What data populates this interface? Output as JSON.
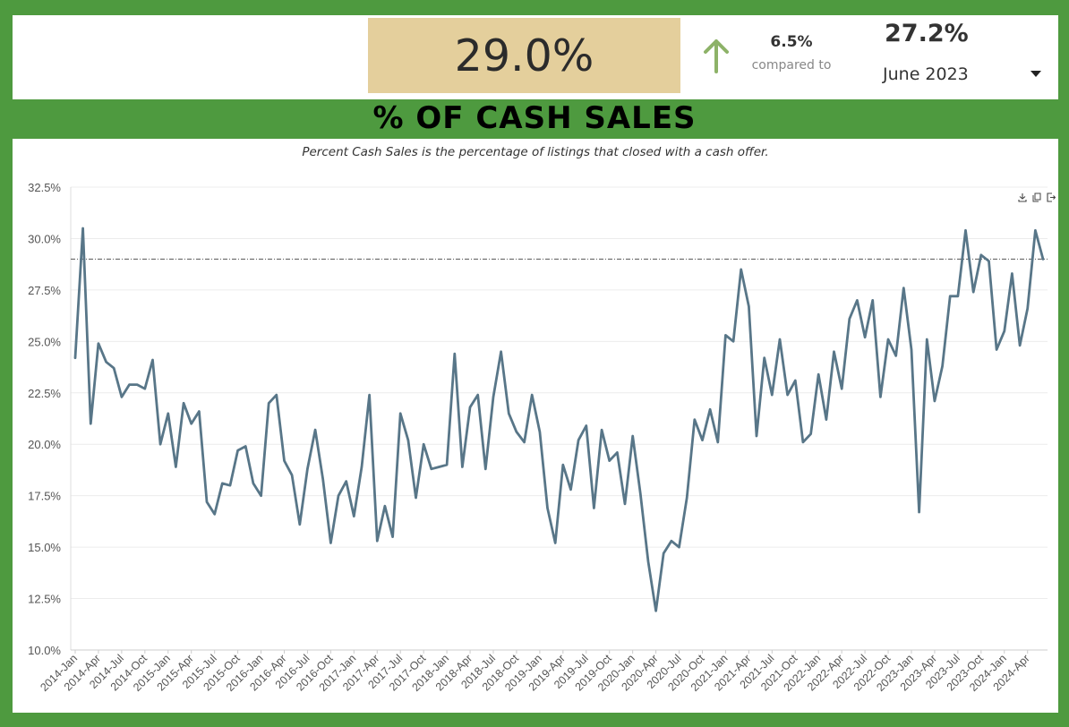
{
  "kpi": {
    "current_value": "29.0%",
    "change_value": "6.5%",
    "compared_label": "compared to",
    "previous_value": "27.2%",
    "period": "June 2023",
    "trend": "up",
    "colors": {
      "kpi_bg": "#e4cf9c",
      "arrow": "#8db268",
      "frame": "#4e9a3f"
    }
  },
  "title": "% OF CASH SALES",
  "subtitle": "Percent Cash Sales is the percentage of listings that closed with a cash offer.",
  "icons": [
    "download-icon",
    "copy-icon",
    "export-icon"
  ],
  "chart_data": {
    "type": "line",
    "ylim": [
      10,
      32.5
    ],
    "yticks": [
      "10.0%",
      "12.5%",
      "15.0%",
      "17.5%",
      "20.0%",
      "22.5%",
      "25.0%",
      "27.5%",
      "30.0%",
      "32.5%"
    ],
    "xtick_labels": [
      "2014-Jan",
      "2014-Apr",
      "2014-Jul",
      "2014-Oct",
      "2015-Jan",
      "2015-Apr",
      "2015-Jul",
      "2015-Oct",
      "2016-Jan",
      "2016-Apr",
      "2016-Jul",
      "2016-Oct",
      "2017-Jan",
      "2017-Apr",
      "2017-Jul",
      "2017-Oct",
      "2018-Jan",
      "2018-Apr",
      "2018-Jul",
      "2018-Oct",
      "2019-Jan",
      "2019-Apr",
      "2019-Jul",
      "2019-Oct",
      "2020-Jan",
      "2020-Apr",
      "2020-Jul",
      "2020-Oct",
      "2021-Jan",
      "2021-Apr",
      "2021-Jul",
      "2021-Oct",
      "2022-Jan",
      "2022-Apr",
      "2022-Jul",
      "2022-Oct",
      "2023-Jan",
      "2023-Apr",
      "2023-Jul",
      "2023-Oct",
      "2024-Jan",
      "2024-Apr"
    ],
    "reference_line": 29.0,
    "line_color": "#587688",
    "grid": true,
    "series": [
      {
        "values": [
          24.2,
          30.5,
          21.0,
          24.9,
          24.0,
          23.7,
          22.3,
          22.9,
          22.9,
          22.7,
          24.1,
          20.0,
          21.5,
          18.9,
          22.0,
          21.0,
          21.6,
          17.2,
          16.6,
          18.1,
          18.0,
          19.7,
          19.9,
          18.1,
          17.5,
          22.0,
          22.4,
          19.2,
          18.5,
          16.1,
          18.8,
          20.7,
          18.3,
          15.2,
          17.5,
          18.2,
          16.5,
          18.9,
          22.4,
          15.3,
          17.0,
          15.5,
          21.5,
          20.2,
          17.4,
          20.0,
          18.8,
          18.9,
          19.0,
          24.4,
          18.9,
          21.8,
          22.4,
          18.8,
          22.3,
          24.5,
          21.5,
          20.6,
          20.1,
          22.4,
          20.6,
          16.9,
          15.2,
          19.0,
          17.8,
          20.2,
          20.9,
          16.9,
          20.7,
          19.2,
          19.6,
          17.1,
          20.4,
          17.6,
          14.3,
          11.9,
          14.7,
          15.3,
          15.0,
          17.4,
          21.2,
          20.2,
          21.7,
          20.1,
          25.3,
          25.0,
          28.5,
          26.7,
          20.4,
          24.2,
          22.4,
          25.1,
          22.4,
          23.1,
          20.1,
          20.5,
          23.4,
          21.2,
          24.5,
          22.7,
          26.1,
          27.0,
          25.2,
          27.0,
          22.3,
          25.1,
          24.3,
          27.6,
          24.6,
          16.7,
          25.1,
          22.1,
          23.8,
          27.2,
          27.2,
          30.4,
          27.4,
          29.2,
          28.9,
          24.6,
          25.5,
          28.3,
          24.8,
          26.6,
          30.4,
          29.0
        ]
      }
    ]
  }
}
